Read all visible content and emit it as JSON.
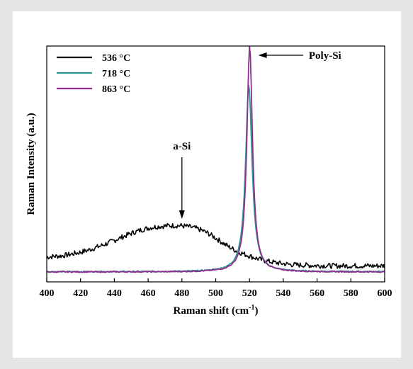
{
  "chart_data": {
    "type": "line",
    "xlabel": "Raman shift (cm",
    "xlabel_superscript": "-1",
    "xlabel_suffix": ")",
    "ylabel": "Raman Intensity (a.u.)",
    "xlim": [
      400,
      600
    ],
    "ylim": [
      0,
      100
    ],
    "x_ticks": [
      400,
      420,
      440,
      460,
      480,
      500,
      520,
      540,
      560,
      580,
      600
    ],
    "grid": false,
    "legend_position": "top-left",
    "series": [
      {
        "name": "536 °C",
        "color": "#000000",
        "kind": "amorphous",
        "points": [
          [
            400,
            10.5
          ],
          [
            404,
            10.8
          ],
          [
            408,
            11.0
          ],
          [
            412,
            11.4
          ],
          [
            416,
            12.0
          ],
          [
            420,
            12.6
          ],
          [
            424,
            13.3
          ],
          [
            428,
            14.3
          ],
          [
            432,
            15.3
          ],
          [
            436,
            16.4
          ],
          [
            440,
            17.6
          ],
          [
            444,
            18.8
          ],
          [
            448,
            20.0
          ],
          [
            452,
            21.1
          ],
          [
            456,
            22.0
          ],
          [
            460,
            22.8
          ],
          [
            464,
            23.3
          ],
          [
            468,
            23.6
          ],
          [
            472,
            23.8
          ],
          [
            476,
            23.9
          ],
          [
            480,
            23.8
          ],
          [
            484,
            23.4
          ],
          [
            488,
            22.8
          ],
          [
            492,
            21.8
          ],
          [
            496,
            20.4
          ],
          [
            500,
            18.6
          ],
          [
            504,
            16.6
          ],
          [
            508,
            14.8
          ],
          [
            512,
            13.2
          ],
          [
            516,
            12.0
          ],
          [
            520,
            11.0
          ],
          [
            524,
            10.0
          ],
          [
            528,
            9.2
          ],
          [
            532,
            8.6
          ],
          [
            536,
            8.1
          ],
          [
            540,
            7.7
          ],
          [
            544,
            7.4
          ],
          [
            548,
            7.2
          ],
          [
            552,
            7.1
          ],
          [
            556,
            7.0
          ],
          [
            560,
            6.9
          ],
          [
            564,
            6.9
          ],
          [
            568,
            6.8
          ],
          [
            572,
            6.8
          ],
          [
            576,
            6.8
          ],
          [
            580,
            6.8
          ],
          [
            584,
            6.8
          ],
          [
            588,
            6.8
          ],
          [
            592,
            6.8
          ],
          [
            596,
            6.8
          ],
          [
            600,
            6.8
          ]
        ],
        "noise": 1.1
      },
      {
        "name": "718 °C",
        "color": "#2a9a91",
        "kind": "peak",
        "baseline": 4.3,
        "peak_center": 519.6,
        "peak_height": 83.5,
        "peak_hwhm": 2.3,
        "noise": 0.25
      },
      {
        "name": "863 °C",
        "color": "#8e2f8e",
        "kind": "peak",
        "baseline": 4.2,
        "peak_center": 520.1,
        "peak_height": 100,
        "peak_hwhm": 2.0,
        "noise": 0.25
      }
    ],
    "annotations": [
      {
        "text": "a-Si",
        "x": 480,
        "y": 30
      },
      {
        "text": "Poly-Si",
        "x": 540,
        "y": 100
      }
    ]
  }
}
